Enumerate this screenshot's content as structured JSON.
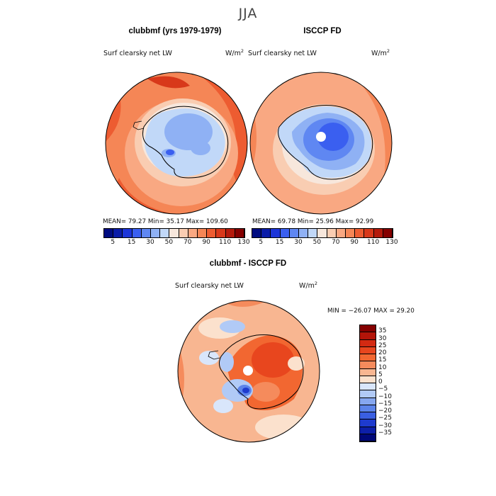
{
  "title": "JJA",
  "panels": [
    {
      "title": "clubbmf (yrs 1979-1979)",
      "variable": "Surf clearsky net LW",
      "unit_base": "W/m",
      "unit_exp": "2",
      "stats": "MEAN=   79.27  Min=   35.17  Max= 109.60"
    },
    {
      "title": "ISCCP FD",
      "variable": "Surf clearsky net LW",
      "unit_base": "W/m",
      "unit_exp": "2",
      "stats": "MEAN=   69.78  Min=   25.96  Max=   92.99"
    }
  ],
  "colorbar_top": {
    "colors": [
      "#000c80",
      "#0a1ca8",
      "#1c35d8",
      "#3a5ff0",
      "#5f87f2",
      "#8fb1f4",
      "#c1d8f8",
      "#f7e7dc",
      "#f9cdb2",
      "#f9a882",
      "#f58656",
      "#ed5c31",
      "#d8381a",
      "#b41a0c",
      "#850000"
    ],
    "labels": [
      "5",
      "15",
      "30",
      "50",
      "70",
      "90",
      "110",
      "130"
    ]
  },
  "diff": {
    "title": "clubbmf - ISCCP FD",
    "variable": "Surf clearsky net LW",
    "unit_base": "W/m",
    "unit_exp": "2",
    "stats": "MIN = −26.07 MAX =   29.20",
    "colorbar": {
      "colors": [
        "#850000",
        "#b31409",
        "#d32a12",
        "#e8461e",
        "#f26731",
        "#f58b5c",
        "#f8b691",
        "#fbe1cd",
        "#d9e6fb",
        "#b1caf6",
        "#86a7f0",
        "#5c84ea",
        "#3a5fe2",
        "#1e3bce",
        "#0d1fa8",
        "#000878"
      ],
      "labels": [
        "35",
        "30",
        "25",
        "20",
        "15",
        "10",
        "5",
        "0",
        "−5",
        "−10",
        "−15",
        "−20",
        "−25",
        "−30",
        "−35"
      ]
    }
  }
}
